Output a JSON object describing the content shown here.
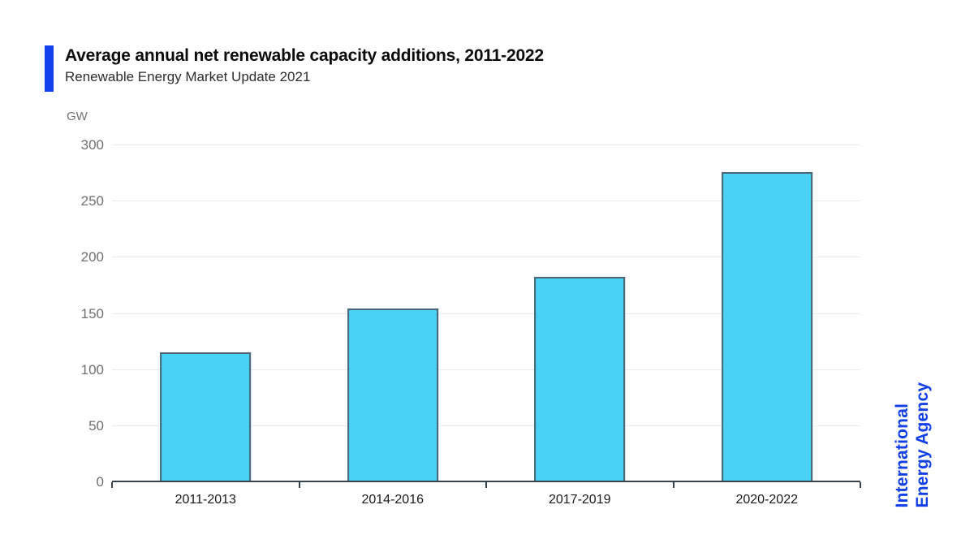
{
  "chart_data": {
    "type": "bar",
    "title": "Average annual net renewable capacity additions, 2011-2022",
    "subtitle": "Renewable Energy Market Update 2021",
    "categories": [
      "2011-2013",
      "2014-2016",
      "2017-2019",
      "2020-2022"
    ],
    "values": [
      116,
      155,
      183,
      276
    ],
    "xlabel": "",
    "ylabel": "GW",
    "ylim": [
      0,
      300
    ],
    "yticks": [
      0,
      50,
      100,
      150,
      200,
      250,
      300
    ],
    "grid": true,
    "legend": "none",
    "bar_color": "#49d2f6",
    "bar_border_color": "#4b6572"
  },
  "branding": {
    "line1": "International",
    "line2": "Energy Agency"
  },
  "colors": {
    "accent_blue": "#1240e8",
    "axis": "#37424a",
    "gridline": "#ebebeb",
    "y_label": "#717171",
    "x_label": "#191919"
  }
}
